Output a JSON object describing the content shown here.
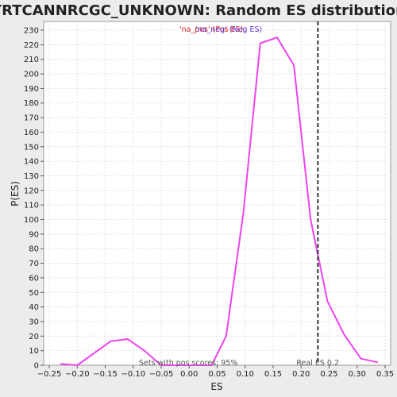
{
  "chart_data": {
    "type": "line",
    "title": "YRTCANNRCGC_UNKNOWN: Random ES distribution",
    "xlabel": "ES",
    "ylabel": "P(ES)",
    "xlim": [
      -0.26,
      0.36
    ],
    "ylim": [
      0,
      236
    ],
    "xticks": [
      -0.25,
      -0.2,
      -0.15,
      -0.1,
      -0.05,
      0.0,
      0.05,
      0.1,
      0.15,
      0.2,
      0.25,
      0.3,
      0.35
    ],
    "xtick_labels": [
      "−0.25",
      "−0.20",
      "−0.15",
      "−0.10",
      "−0.05",
      "0.00",
      "0.05",
      "0.10",
      "0.15",
      "0.20",
      "0.25",
      "0.30",
      "0.35"
    ],
    "yticks": [
      0,
      10,
      20,
      30,
      40,
      50,
      60,
      70,
      80,
      90,
      100,
      110,
      120,
      130,
      140,
      150,
      160,
      170,
      180,
      190,
      200,
      210,
      220,
      230
    ],
    "grid": true,
    "series": [
      {
        "color": "#ee44ee",
        "x": [
          -0.23,
          -0.2,
          -0.14,
          -0.11,
          -0.08,
          -0.05,
          -0.02,
          0.01,
          0.04,
          0.066,
          0.097,
          0.127,
          0.157,
          0.187,
          0.217,
          0.247,
          0.277,
          0.307,
          0.337
        ],
        "y": [
          1,
          0,
          16.5,
          18,
          10,
          0,
          0,
          0,
          0,
          20,
          105,
          221,
          225,
          206,
          100,
          44,
          21,
          4.5,
          2
        ]
      }
    ],
    "vline": {
      "x": 0.23,
      "label": "Real ES 0.2",
      "color": "#333333"
    },
    "annotations": {
      "legend_text": "'na_pos' (Pos ES)",
      "legend_text_2": "'na_neg' (Neg ES)",
      "bottom_note": "Sets with pos scores: 95%"
    },
    "colors": {
      "legend_pos": "#dd2222",
      "legend_neg": "#6633cc",
      "note": "#555555"
    }
  }
}
